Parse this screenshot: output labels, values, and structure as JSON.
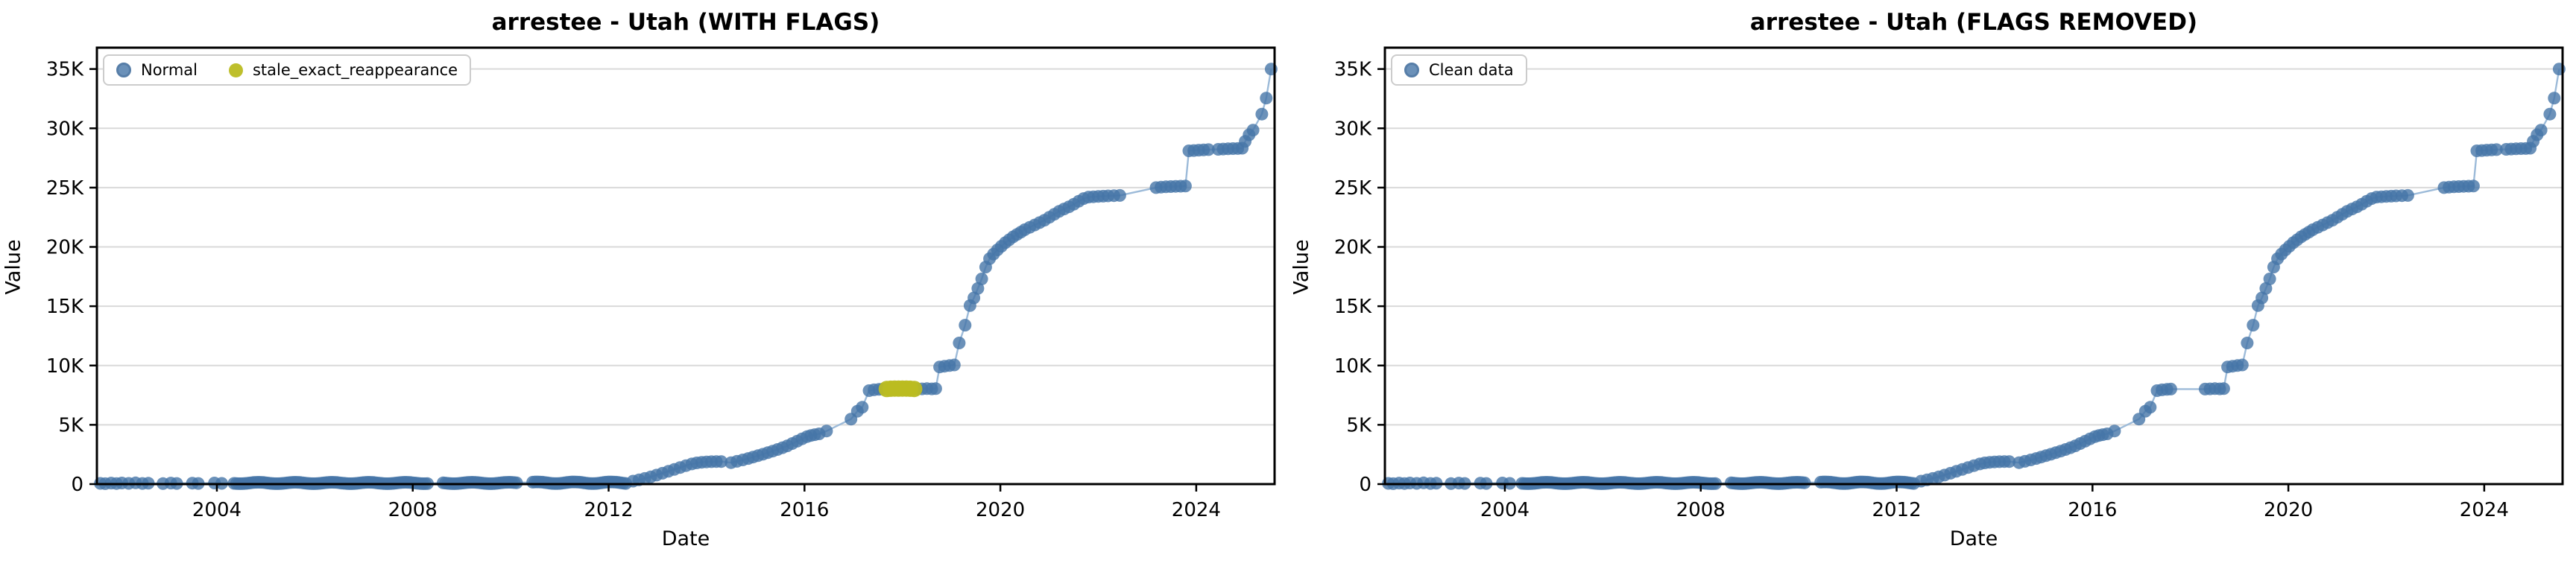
{
  "style": {
    "normal_point_color": "rgba(70,118,168,0.8)",
    "normal_point_edge": "#577ea8",
    "flagged_point_color": "rgba(187,188,33,0.95)",
    "line_color": "#9dbbd9",
    "grid_color": "#d9d9d9",
    "spine_color": "#000000",
    "background": "#ffffff"
  },
  "shared_series": {
    "x_unit": "decimal_year",
    "approx_baseline_value_range": [
      0,
      200
    ],
    "sparse_points": [
      [
        2001.62,
        60
      ],
      [
        2001.72,
        40
      ],
      [
        2001.84,
        85
      ],
      [
        2001.95,
        50
      ],
      [
        2002.06,
        95
      ],
      [
        2002.2,
        60
      ],
      [
        2002.34,
        105
      ],
      [
        2002.48,
        55
      ],
      [
        2002.6,
        75
      ],
      [
        2002.9,
        45
      ],
      [
        2003.06,
        90
      ],
      [
        2003.18,
        55
      ],
      [
        2003.5,
        80
      ],
      [
        2003.62,
        55
      ],
      [
        2003.95,
        95
      ],
      [
        2004.1,
        65
      ]
    ],
    "baseline_clusters": [
      {
        "from": 2004.35,
        "to": 2008.3,
        "step": 0.05,
        "base": 35,
        "amp": 120
      },
      {
        "from": 2008.62,
        "to": 2010.12,
        "step": 0.05,
        "base": 35,
        "amp": 120
      },
      {
        "from": 2010.45,
        "to": 2012.38,
        "step": 0.05,
        "base": 45,
        "amp": 140
      }
    ],
    "normal_points": [
      [
        2012.5,
        250
      ],
      [
        2012.62,
        360
      ],
      [
        2012.74,
        480
      ],
      [
        2012.86,
        610
      ],
      [
        2012.98,
        760
      ],
      [
        2013.1,
        920
      ],
      [
        2013.22,
        1080
      ],
      [
        2013.34,
        1240
      ],
      [
        2013.46,
        1400
      ],
      [
        2013.58,
        1560
      ],
      [
        2013.7,
        1700
      ],
      [
        2013.8,
        1790
      ],
      [
        2013.9,
        1840
      ],
      [
        2014.0,
        1870
      ],
      [
        2014.1,
        1890
      ],
      [
        2014.2,
        1900
      ],
      [
        2014.3,
        1900
      ],
      [
        2014.5,
        1810
      ],
      [
        2014.62,
        1920
      ],
      [
        2014.74,
        2040
      ],
      [
        2014.85,
        2160
      ],
      [
        2014.95,
        2280
      ],
      [
        2015.05,
        2400
      ],
      [
        2015.15,
        2520
      ],
      [
        2015.25,
        2650
      ],
      [
        2015.35,
        2780
      ],
      [
        2015.45,
        2920
      ],
      [
        2015.55,
        3070
      ],
      [
        2015.65,
        3230
      ],
      [
        2015.75,
        3420
      ],
      [
        2015.85,
        3620
      ],
      [
        2015.95,
        3820
      ],
      [
        2016.05,
        4000
      ],
      [
        2016.13,
        4100
      ],
      [
        2016.21,
        4170
      ],
      [
        2016.3,
        4240
      ],
      [
        2016.45,
        4480
      ],
      [
        2016.95,
        5480
      ],
      [
        2017.08,
        6150
      ],
      [
        2017.18,
        6480
      ],
      [
        2017.32,
        7880
      ],
      [
        2017.42,
        7950
      ],
      [
        2017.52,
        7990
      ],
      [
        2017.6,
        8010
      ],
      [
        2018.3,
        8010
      ],
      [
        2018.4,
        8030
      ],
      [
        2018.5,
        8050
      ],
      [
        2018.6,
        8030
      ],
      [
        2018.68,
        8050
      ],
      [
        2018.76,
        9880
      ],
      [
        2018.86,
        9940
      ],
      [
        2018.96,
        10000
      ],
      [
        2019.06,
        10050
      ],
      [
        2019.16,
        11900
      ],
      [
        2019.28,
        13400
      ],
      [
        2019.38,
        15050
      ],
      [
        2019.46,
        15700
      ],
      [
        2019.54,
        16500
      ],
      [
        2019.62,
        17300
      ],
      [
        2019.7,
        18300
      ],
      [
        2019.78,
        19000
      ],
      [
        2019.86,
        19400
      ],
      [
        2019.94,
        19750
      ],
      [
        2020.02,
        20050
      ],
      [
        2020.1,
        20350
      ],
      [
        2020.18,
        20600
      ],
      [
        2020.26,
        20850
      ],
      [
        2020.34,
        21050
      ],
      [
        2020.42,
        21250
      ],
      [
        2020.5,
        21450
      ],
      [
        2020.6,
        21650
      ],
      [
        2020.7,
        21850
      ],
      [
        2020.8,
        22050
      ],
      [
        2020.9,
        22250
      ],
      [
        2021.0,
        22500
      ],
      [
        2021.1,
        22750
      ],
      [
        2021.2,
        23000
      ],
      [
        2021.3,
        23200
      ],
      [
        2021.4,
        23380
      ],
      [
        2021.5,
        23600
      ],
      [
        2021.6,
        23850
      ],
      [
        2021.7,
        24080
      ],
      [
        2021.8,
        24200
      ],
      [
        2021.9,
        24230
      ],
      [
        2022.0,
        24260
      ],
      [
        2022.1,
        24280
      ],
      [
        2022.2,
        24300
      ],
      [
        2022.32,
        24320
      ],
      [
        2022.44,
        24340
      ],
      [
        2023.18,
        25000
      ],
      [
        2023.28,
        25040
      ],
      [
        2023.38,
        25070
      ],
      [
        2023.48,
        25090
      ],
      [
        2023.58,
        25110
      ],
      [
        2023.68,
        25120
      ],
      [
        2023.78,
        25130
      ],
      [
        2023.85,
        28100
      ],
      [
        2023.95,
        28130
      ],
      [
        2024.05,
        28160
      ],
      [
        2024.15,
        28180
      ],
      [
        2024.25,
        28200
      ],
      [
        2024.45,
        28230
      ],
      [
        2024.55,
        28250
      ],
      [
        2024.65,
        28270
      ],
      [
        2024.75,
        28290
      ],
      [
        2024.85,
        28300
      ],
      [
        2024.94,
        28320
      ],
      [
        2025.0,
        28900
      ],
      [
        2025.08,
        29450
      ],
      [
        2025.16,
        29850
      ],
      [
        2025.34,
        31200
      ],
      [
        2025.43,
        32550
      ],
      [
        2025.53,
        35000
      ]
    ],
    "flagged_points": [
      [
        2017.68,
        8020
      ],
      [
        2017.76,
        8045
      ],
      [
        2017.84,
        8060
      ],
      [
        2017.92,
        8050
      ],
      [
        2018.0,
        8060
      ],
      [
        2018.08,
        8055
      ],
      [
        2018.16,
        8045
      ],
      [
        2018.24,
        8025
      ]
    ]
  },
  "chart_data": [
    {
      "type": "scatter",
      "title": "arrestee - Utah (WITH FLAGS)",
      "xlabel": "Date",
      "ylabel": "Value",
      "xlim": [
        2001.55,
        2025.6
      ],
      "ylim": [
        0,
        36800
      ],
      "xticks": [
        2004,
        2008,
        2012,
        2016,
        2020,
        2024
      ],
      "ytick_values": [
        0,
        5000,
        10000,
        15000,
        20000,
        25000,
        30000,
        35000
      ],
      "ytick_labels": [
        "0",
        "5K",
        "10K",
        "15K",
        "20K",
        "25K",
        "30K",
        "35K"
      ],
      "grid": "horizontal",
      "legend_position": "upper-left",
      "legend": [
        "Normal",
        "stale_exact_reappearance"
      ],
      "series": [
        {
          "name": "Normal",
          "points_ref": "normal",
          "color_ref": "normal_point_color"
        },
        {
          "name": "stale_exact_reappearance",
          "points_ref": "flagged",
          "color_ref": "flagged_point_color"
        }
      ]
    },
    {
      "type": "scatter",
      "title": "arrestee - Utah (FLAGS REMOVED)",
      "xlabel": "Date",
      "ylabel": "Value",
      "xlim": [
        2001.55,
        2025.6
      ],
      "ylim": [
        0,
        36800
      ],
      "xticks": [
        2004,
        2008,
        2012,
        2016,
        2020,
        2024
      ],
      "ytick_values": [
        0,
        5000,
        10000,
        15000,
        20000,
        25000,
        30000,
        35000
      ],
      "ytick_labels": [
        "0",
        "5K",
        "10K",
        "15K",
        "20K",
        "25K",
        "30K",
        "35K"
      ],
      "grid": "horizontal",
      "legend_position": "upper-left",
      "legend": [
        "Clean data"
      ],
      "series": [
        {
          "name": "Clean data",
          "points_ref": "normal",
          "color_ref": "normal_point_color"
        }
      ]
    }
  ]
}
